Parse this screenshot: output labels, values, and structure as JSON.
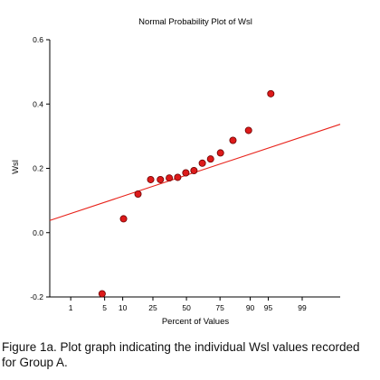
{
  "chart_data": {
    "type": "scatter",
    "title": "Normal Probability Plot of Wsl",
    "xlabel": "Percent of Values",
    "ylabel": "Wsl",
    "x_scale": "normal-probability",
    "xlim": [
      0.3,
      99.9
    ],
    "ylim": [
      -0.2,
      0.6
    ],
    "x_ticks": [
      {
        "value": 1,
        "label": "1"
      },
      {
        "value": 5,
        "label": "5"
      },
      {
        "value": 10,
        "label": "10"
      },
      {
        "value": 25,
        "label": "25"
      },
      {
        "value": 50,
        "label": "50"
      },
      {
        "value": 75,
        "label": "75"
      },
      {
        "value": 90,
        "label": "90"
      },
      {
        "value": 95,
        "label": "95"
      },
      {
        "value": 99,
        "label": "99"
      }
    ],
    "y_ticks": [
      {
        "value": -0.2,
        "label": "-0.2"
      },
      {
        "value": 0.0,
        "label": "0.0"
      },
      {
        "value": 0.2,
        "label": "0.2"
      },
      {
        "value": 0.4,
        "label": "0.4"
      },
      {
        "value": 0.6,
        "label": "0.6"
      }
    ],
    "grid": false,
    "points": [
      {
        "x": 4.5,
        "y": -0.19
      },
      {
        "x": 10.3,
        "y": 0.043
      },
      {
        "x": 16.5,
        "y": 0.12
      },
      {
        "x": 23.6,
        "y": 0.165
      },
      {
        "x": 30.0,
        "y": 0.165
      },
      {
        "x": 36.5,
        "y": 0.17
      },
      {
        "x": 43.0,
        "y": 0.172
      },
      {
        "x": 49.5,
        "y": 0.186
      },
      {
        "x": 56.0,
        "y": 0.193
      },
      {
        "x": 62.5,
        "y": 0.216
      },
      {
        "x": 68.6,
        "y": 0.229
      },
      {
        "x": 75.3,
        "y": 0.248
      },
      {
        "x": 82.5,
        "y": 0.287
      },
      {
        "x": 89.4,
        "y": 0.318
      },
      {
        "x": 95.5,
        "y": 0.432
      }
    ],
    "fit_line": {
      "x": [
        0.3,
        99.9
      ],
      "y": [
        0.038,
        0.337
      ]
    },
    "colors": {
      "marker_fill": "#dd1a1a",
      "marker_stroke": "#6a0000",
      "fit_line": "#e8231b",
      "axis": "#000000"
    }
  },
  "caption": "Figure 1a. Plot graph indicating the individual Wsl values recorded for Group A."
}
